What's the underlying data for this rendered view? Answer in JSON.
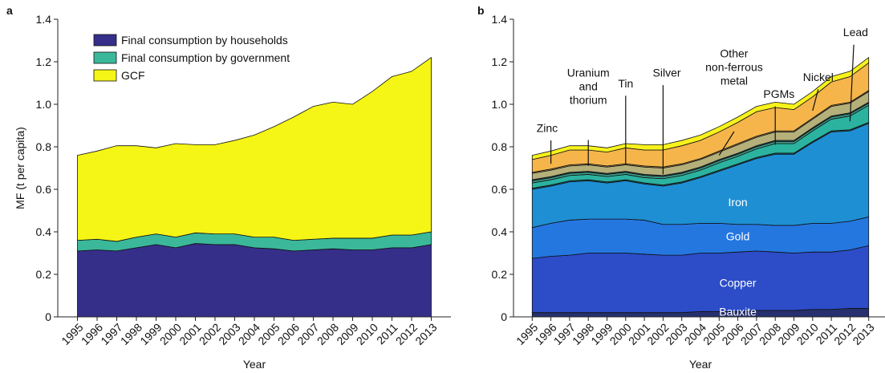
{
  "chart_data": [
    {
      "type": "area",
      "panel": "a",
      "xlabel": "Year",
      "ylabel": "MF (t per capita)",
      "x": [
        1995,
        1996,
        1997,
        1998,
        1999,
        2000,
        2001,
        2002,
        2003,
        2004,
        2005,
        2006,
        2007,
        2008,
        2009,
        2010,
        2011,
        2012,
        2013
      ],
      "xlim": [
        1994,
        2014
      ],
      "ylim": [
        0,
        1.4
      ],
      "yticks": [
        0,
        0.2,
        0.4,
        0.6,
        0.8,
        {
          "value": 1,
          "label": "1.0"
        },
        1.2,
        1.4
      ],
      "legend": "upper left",
      "series": [
        {
          "name": "Final consumption by households",
          "color": "#352f8a",
          "values": [
            0.31,
            0.315,
            0.31,
            0.325,
            0.34,
            0.325,
            0.345,
            0.34,
            0.34,
            0.325,
            0.32,
            0.31,
            0.315,
            0.32,
            0.315,
            0.315,
            0.325,
            0.325,
            0.34
          ]
        },
        {
          "name": "Final consumption by government",
          "color": "#3bb89a",
          "values": [
            0.05,
            0.05,
            0.045,
            0.05,
            0.05,
            0.05,
            0.05,
            0.05,
            0.05,
            0.05,
            0.055,
            0.05,
            0.05,
            0.05,
            0.055,
            0.055,
            0.06,
            0.06,
            0.06
          ]
        },
        {
          "name": "GCF",
          "color": "#f5f516",
          "values": [
            0.4,
            0.415,
            0.45,
            0.43,
            0.405,
            0.44,
            0.415,
            0.42,
            0.44,
            0.48,
            0.52,
            0.58,
            0.625,
            0.64,
            0.63,
            0.69,
            0.745,
            0.77,
            0.82
          ]
        }
      ]
    },
    {
      "type": "area",
      "panel": "b",
      "xlabel": "Year",
      "x": [
        1995,
        1996,
        1997,
        1998,
        1999,
        2000,
        2001,
        2002,
        2003,
        2004,
        2005,
        2006,
        2007,
        2008,
        2009,
        2010,
        2011,
        2012,
        2013
      ],
      "xlim": [
        1994,
        2014
      ],
      "ylim": [
        0,
        1.4
      ],
      "yticks": [
        0,
        0.2,
        0.4,
        0.6,
        0.8,
        {
          "value": 1,
          "label": "1.0"
        },
        1.2,
        1.4
      ],
      "series": [
        {
          "name": "Bauxite",
          "color": "#27306e",
          "values": [
            0.02,
            0.02,
            0.02,
            0.02,
            0.02,
            0.02,
            0.02,
            0.02,
            0.02,
            0.025,
            0.025,
            0.025,
            0.03,
            0.03,
            0.03,
            0.035,
            0.035,
            0.04,
            0.04
          ]
        },
        {
          "name": "Copper",
          "color": "#2c4cc8",
          "values": [
            0.255,
            0.265,
            0.27,
            0.28,
            0.28,
            0.28,
            0.275,
            0.27,
            0.27,
            0.275,
            0.275,
            0.28,
            0.28,
            0.275,
            0.27,
            0.27,
            0.27,
            0.275,
            0.295
          ]
        },
        {
          "name": "Gold",
          "color": "#2577e0",
          "values": [
            0.145,
            0.155,
            0.165,
            0.16,
            0.16,
            0.16,
            0.16,
            0.145,
            0.145,
            0.14,
            0.14,
            0.13,
            0.125,
            0.125,
            0.13,
            0.135,
            0.135,
            0.135,
            0.135
          ]
        },
        {
          "name": "Iron",
          "color": "#1f8fd4",
          "values": [
            0.18,
            0.175,
            0.18,
            0.18,
            0.17,
            0.18,
            0.17,
            0.18,
            0.195,
            0.215,
            0.245,
            0.28,
            0.31,
            0.335,
            0.335,
            0.38,
            0.43,
            0.425,
            0.44
          ]
        },
        {
          "name": "Lead",
          "color": "#1e7a83",
          "values": [
            0.005,
            0.005,
            0.005,
            0.005,
            0.005,
            0.005,
            0.005,
            0.005,
            0.005,
            0.005,
            0.005,
            0.005,
            0.005,
            0.005,
            0.005,
            0.005,
            0.005,
            0.005,
            0.005
          ]
        },
        {
          "name": "Nickel",
          "color": "#2bb3a0",
          "values": [
            0.025,
            0.025,
            0.025,
            0.025,
            0.025,
            0.025,
            0.025,
            0.03,
            0.03,
            0.03,
            0.035,
            0.035,
            0.04,
            0.045,
            0.045,
            0.05,
            0.055,
            0.065,
            0.08
          ]
        },
        {
          "name": "Silver",
          "color": "#3f9f8c",
          "values": [
            0.01,
            0.01,
            0.01,
            0.01,
            0.01,
            0.01,
            0.01,
            0.01,
            0.01,
            0.01,
            0.01,
            0.01,
            0.01,
            0.01,
            0.01,
            0.01,
            0.01,
            0.01,
            0.01
          ]
        },
        {
          "name": "Uranium and thorium",
          "color": "#2d5f63",
          "values": [
            0.005,
            0.005,
            0.005,
            0.005,
            0.005,
            0.005,
            0.005,
            0.005,
            0.005,
            0.005,
            0.005,
            0.005,
            0.005,
            0.005,
            0.005,
            0.005,
            0.005,
            0.005,
            0.005
          ]
        },
        {
          "name": "Other non-ferrous metal",
          "color": "#b5b07a",
          "values": [
            0.03,
            0.03,
            0.03,
            0.03,
            0.03,
            0.03,
            0.035,
            0.035,
            0.035,
            0.035,
            0.035,
            0.04,
            0.04,
            0.04,
            0.04,
            0.04,
            0.045,
            0.045,
            0.05
          ]
        },
        {
          "name": "PGMs",
          "color": "#c9a858",
          "values": [
            0.005,
            0.005,
            0.005,
            0.005,
            0.005,
            0.005,
            0.005,
            0.005,
            0.005,
            0.005,
            0.005,
            0.005,
            0.005,
            0.005,
            0.005,
            0.005,
            0.005,
            0.005,
            0.005
          ]
        },
        {
          "name": "Zinc",
          "color": "#f5b54b",
          "values": [
            0.06,
            0.065,
            0.07,
            0.065,
            0.065,
            0.075,
            0.075,
            0.08,
            0.085,
            0.085,
            0.09,
            0.1,
            0.115,
            0.11,
            0.1,
            0.1,
            0.11,
            0.12,
            0.13
          ]
        },
        {
          "name": "Tin",
          "color": "#f7f21c",
          "values": [
            0.02,
            0.02,
            0.02,
            0.02,
            0.02,
            0.02,
            0.025,
            0.025,
            0.025,
            0.025,
            0.025,
            0.025,
            0.025,
            0.025,
            0.025,
            0.025,
            0.025,
            0.025,
            0.025
          ]
        }
      ]
    }
  ]
}
